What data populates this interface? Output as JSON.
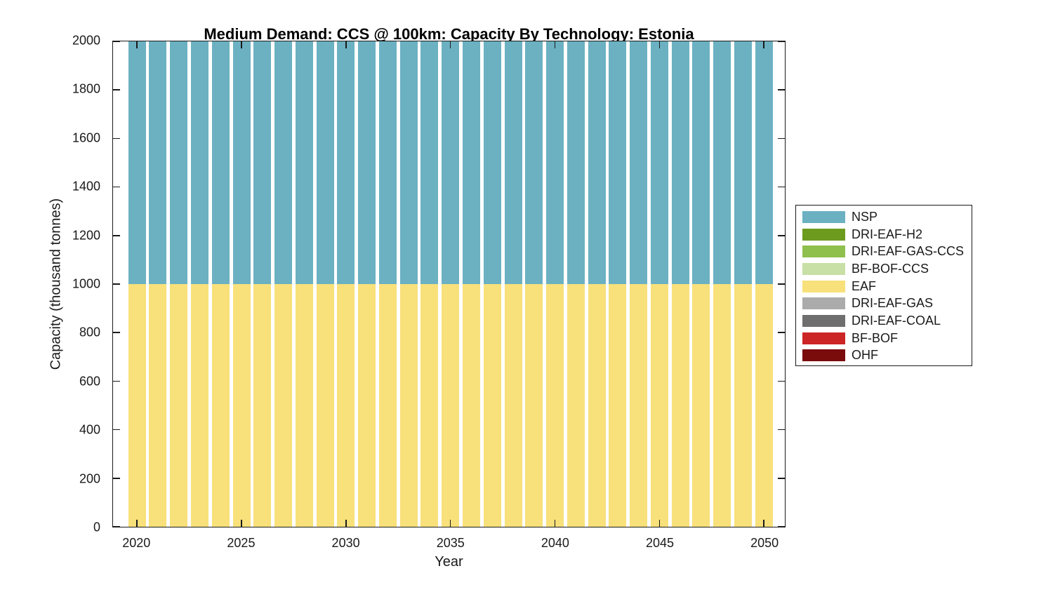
{
  "title": "Medium Demand: CCS @ 100km: Capacity By Technology: Estonia",
  "chart_data": {
    "type": "bar",
    "stacked": true,
    "title": "Medium Demand: CCS @ 100km: Capacity By Technology: Estonia",
    "xlabel": "Year",
    "ylabel": "Capacity (thousand tonnes)",
    "x": [
      2020,
      2021,
      2022,
      2023,
      2024,
      2025,
      2026,
      2027,
      2028,
      2029,
      2030,
      2031,
      2032,
      2033,
      2034,
      2035,
      2036,
      2037,
      2038,
      2039,
      2040,
      2041,
      2042,
      2043,
      2044,
      2045,
      2046,
      2047,
      2048,
      2049,
      2050
    ],
    "series": [
      {
        "name": "NSP",
        "color": "#6BB1C2",
        "values": [
          1000,
          1000,
          1000,
          1000,
          1000,
          1000,
          1000,
          1000,
          1000,
          1000,
          1000,
          1000,
          1000,
          1000,
          1000,
          1000,
          1000,
          1000,
          1000,
          1000,
          1000,
          1000,
          1000,
          1000,
          1000,
          1000,
          1000,
          1000,
          1000,
          1000,
          1000
        ]
      },
      {
        "name": "DRI-EAF-H2",
        "color": "#6D9B1E",
        "values": [
          0,
          0,
          0,
          0,
          0,
          0,
          0,
          0,
          0,
          0,
          0,
          0,
          0,
          0,
          0,
          0,
          0,
          0,
          0,
          0,
          0,
          0,
          0,
          0,
          0,
          0,
          0,
          0,
          0,
          0,
          0
        ]
      },
      {
        "name": "DRI-EAF-GAS-CCS",
        "color": "#8FBF4D",
        "values": [
          0,
          0,
          0,
          0,
          0,
          0,
          0,
          0,
          0,
          0,
          0,
          0,
          0,
          0,
          0,
          0,
          0,
          0,
          0,
          0,
          0,
          0,
          0,
          0,
          0,
          0,
          0,
          0,
          0,
          0,
          0
        ]
      },
      {
        "name": "BF-BOF-CCS",
        "color": "#C8DFA5",
        "values": [
          0,
          0,
          0,
          0,
          0,
          0,
          0,
          0,
          0,
          0,
          0,
          0,
          0,
          0,
          0,
          0,
          0,
          0,
          0,
          0,
          0,
          0,
          0,
          0,
          0,
          0,
          0,
          0,
          0,
          0,
          0
        ]
      },
      {
        "name": "EAF",
        "color": "#F8E07A",
        "values": [
          1000,
          1000,
          1000,
          1000,
          1000,
          1000,
          1000,
          1000,
          1000,
          1000,
          1000,
          1000,
          1000,
          1000,
          1000,
          1000,
          1000,
          1000,
          1000,
          1000,
          1000,
          1000,
          1000,
          1000,
          1000,
          1000,
          1000,
          1000,
          1000,
          1000,
          1000
        ]
      },
      {
        "name": "DRI-EAF-GAS",
        "color": "#ABABAB",
        "values": [
          0,
          0,
          0,
          0,
          0,
          0,
          0,
          0,
          0,
          0,
          0,
          0,
          0,
          0,
          0,
          0,
          0,
          0,
          0,
          0,
          0,
          0,
          0,
          0,
          0,
          0,
          0,
          0,
          0,
          0,
          0
        ]
      },
      {
        "name": "DRI-EAF-COAL",
        "color": "#6E6E6E",
        "values": [
          0,
          0,
          0,
          0,
          0,
          0,
          0,
          0,
          0,
          0,
          0,
          0,
          0,
          0,
          0,
          0,
          0,
          0,
          0,
          0,
          0,
          0,
          0,
          0,
          0,
          0,
          0,
          0,
          0,
          0,
          0
        ]
      },
      {
        "name": "BF-BOF",
        "color": "#CC2525",
        "values": [
          0,
          0,
          0,
          0,
          0,
          0,
          0,
          0,
          0,
          0,
          0,
          0,
          0,
          0,
          0,
          0,
          0,
          0,
          0,
          0,
          0,
          0,
          0,
          0,
          0,
          0,
          0,
          0,
          0,
          0,
          0
        ]
      },
      {
        "name": "OHF",
        "color": "#7A0C0C",
        "values": [
          0,
          0,
          0,
          0,
          0,
          0,
          0,
          0,
          0,
          0,
          0,
          0,
          0,
          0,
          0,
          0,
          0,
          0,
          0,
          0,
          0,
          0,
          0,
          0,
          0,
          0,
          0,
          0,
          0,
          0,
          0
        ]
      }
    ],
    "xlim": [
      2018.85,
      2051.0
    ],
    "ylim": [
      0,
      2000
    ],
    "xticks": [
      2020,
      2025,
      2030,
      2035,
      2040,
      2045,
      2050
    ],
    "yticks": [
      0,
      200,
      400,
      600,
      800,
      1000,
      1200,
      1400,
      1600,
      1800,
      2000
    ],
    "bar_width": 0.84,
    "grid": false,
    "legend_position": "right-outside",
    "background_color": "#FFFFFF",
    "axis_color": "#1A1A1A"
  }
}
